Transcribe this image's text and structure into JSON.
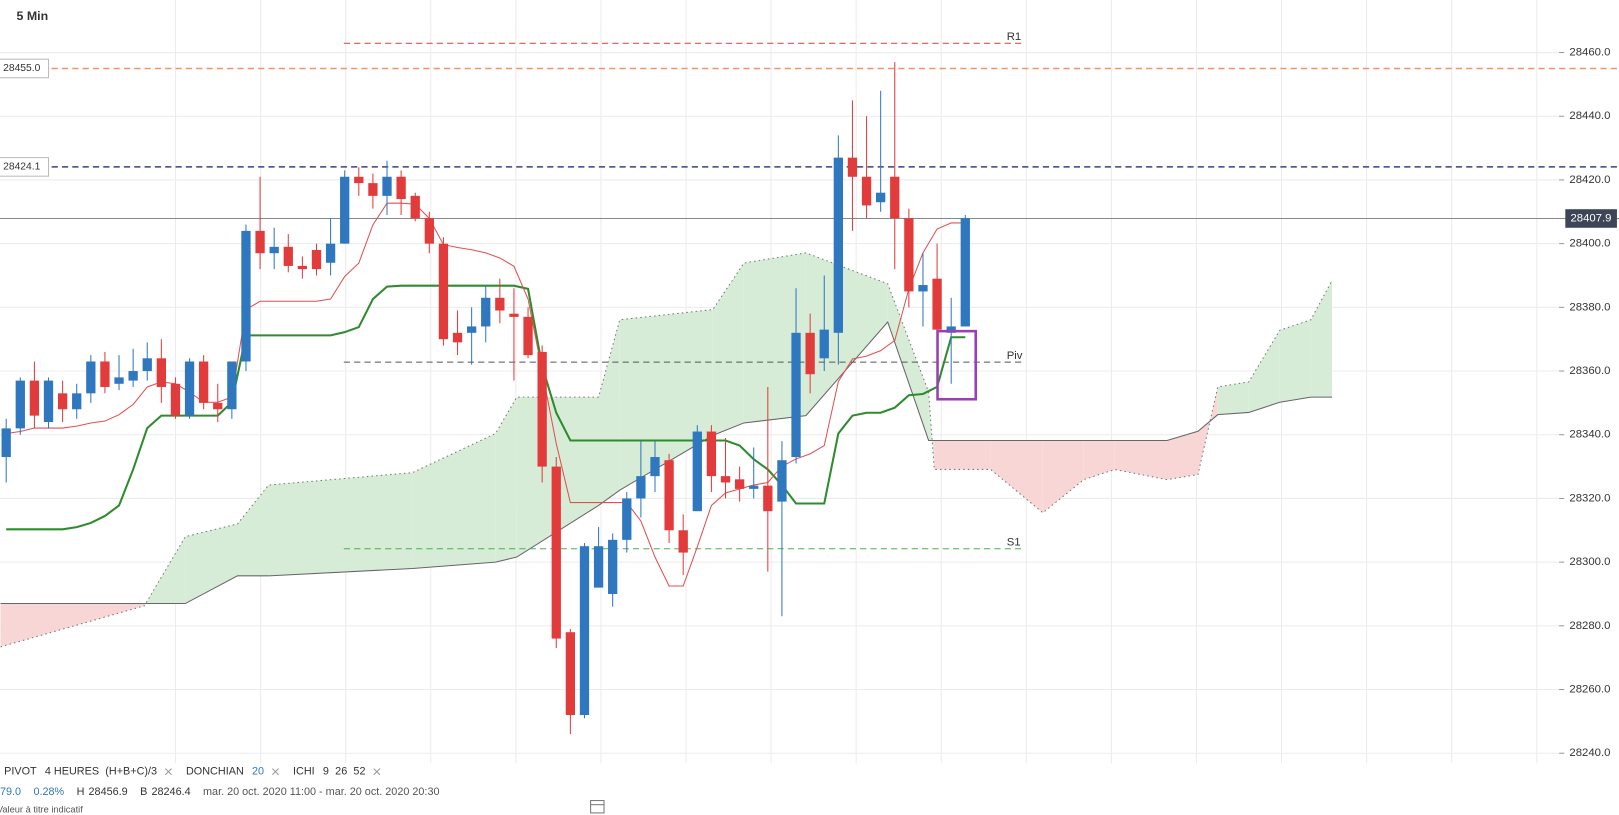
{
  "chart_data": {
    "type": "candlestick",
    "title": "5 Min",
    "ylim": [
      28236.8,
      28476.5
    ],
    "yticks": [
      {
        "value": 28240,
        "label": "28240.0"
      },
      {
        "value": 28260,
        "label": "28260.0"
      },
      {
        "value": 28280,
        "label": "28280.0"
      },
      {
        "value": 28300,
        "label": "28300.0"
      },
      {
        "value": 28320,
        "label": "28320.0"
      },
      {
        "value": 28340,
        "label": "28340.0"
      },
      {
        "value": 28360,
        "label": "28360.0"
      },
      {
        "value": 28380,
        "label": "28380.0"
      },
      {
        "value": 28400,
        "label": "28400.0"
      },
      {
        "value": 28420,
        "label": "28420.0"
      },
      {
        "value": 28440,
        "label": "28440.0"
      },
      {
        "value": 28460,
        "label": "28460.0"
      }
    ],
    "grid": true,
    "up_color": "#2f77bf",
    "down_color": "#e23b3b",
    "categories": [
      null,
      null,
      null,
      null,
      null,
      null,
      null,
      null,
      null,
      null,
      null,
      null,
      null,
      null,
      null,
      null,
      null,
      null,
      null,
      null,
      null,
      null,
      null,
      null,
      null,
      null,
      null,
      null,
      null,
      null,
      null,
      null,
      null,
      null,
      null,
      null,
      null,
      null,
      null,
      null,
      null,
      null,
      null,
      null,
      null,
      null,
      null,
      null,
      null,
      null,
      null,
      null,
      null,
      null,
      null,
      null,
      null,
      null,
      null,
      null,
      null,
      null,
      null,
      null,
      null,
      null,
      null,
      null,
      null
    ],
    "open": [
      28333,
      28342,
      28357,
      28344,
      28353,
      28348,
      28353,
      28363,
      28356,
      28357,
      28360,
      28364,
      28356,
      28346,
      28363,
      28350,
      28348,
      28363,
      28404,
      28397,
      28399,
      28393,
      28398,
      28394,
      28400,
      28421,
      28419,
      28415,
      28421,
      28415,
      28408,
      28400,
      28372,
      28372,
      28374,
      28383,
      28378,
      28377,
      28366,
      28330,
      28278,
      28252,
      28292,
      28290,
      28307,
      28320,
      28327,
      28332,
      28310,
      28316,
      28341,
      28327,
      28326,
      28323,
      28324,
      28319,
      28333,
      28372,
      28364,
      28372,
      28427,
      28421,
      28413,
      28421,
      28408,
      28385,
      28389,
      28372,
      28374
    ],
    "high": [
      28345,
      28358,
      28363,
      28358,
      28357,
      28356,
      28365,
      28366,
      28365,
      28367,
      28369,
      28370,
      28358,
      28364,
      28365,
      28356,
      28363,
      28406,
      28421,
      28405,
      28403,
      28396,
      28400,
      28408,
      28423,
      28424,
      28422,
      28426,
      28423,
      28416,
      28410,
      28402,
      28379,
      28380,
      28387,
      28389,
      28386,
      28380,
      28368,
      28333,
      28279,
      28306,
      28311,
      28309,
      28322,
      28338,
      28338,
      28334,
      28315,
      28343,
      28343,
      28339,
      28330,
      28336,
      28355,
      28338,
      28386,
      28378,
      28390,
      28434,
      28445,
      28440,
      28448,
      28457,
      28411,
      28397,
      28400,
      28383,
      28409
    ],
    "low": [
      28325,
      28340,
      28342,
      28342,
      28344,
      28345,
      28350,
      28353,
      28354,
      28355,
      28357,
      28350,
      28345,
      28345,
      28348,
      28344,
      28345,
      28360,
      28392,
      28392,
      28391,
      28389,
      28390,
      28390,
      28400,
      28415,
      28411,
      28409,
      28409,
      28407,
      28397,
      28368,
      28365,
      28362,
      28369,
      28375,
      28357,
      28364,
      28325,
      28273,
      28246,
      28251,
      28292,
      28286,
      28303,
      28314,
      28322,
      28306,
      28296,
      28316,
      28322,
      28320,
      28319,
      28320,
      28297,
      28283,
      28331,
      28353,
      28360,
      28362,
      28404,
      28408,
      28410,
      28392,
      28380,
      28374,
      28367,
      28356,
      28374
    ],
    "close": [
      28342,
      28357,
      28346,
      28357,
      28348,
      28353,
      28363,
      28355,
      28358,
      28360,
      28364,
      28355,
      28346,
      28363,
      28350,
      28348,
      28363,
      28404,
      28397,
      28399,
      28393,
      28392,
      28392,
      28400,
      28421,
      28419,
      28415,
      28421,
      28414,
      28408,
      28400,
      28370,
      28369,
      28374,
      28383,
      28379,
      28377,
      28365,
      28330,
      28276,
      28252,
      28305,
      28305,
      28307,
      28320,
      28327,
      28333,
      28310,
      28303,
      28341,
      28327,
      28325,
      28323,
      28324,
      28316,
      28332,
      28372,
      28359,
      28373,
      28427,
      28421,
      28412,
      28416,
      28408,
      28385,
      28387,
      28373,
      28374,
      28408
    ],
    "series": [
      {
        "color": "#2e8b2e",
        "values": [
          28310.3,
          28310.3,
          28310.3,
          28310.3,
          28310.3,
          28311,
          28312.3,
          28314.5,
          28317.8,
          28329.1,
          28342.1,
          28346,
          28346,
          28346,
          28346,
          28346,
          28350.2,
          28371.2,
          28371.2,
          28371.2,
          28371.2,
          28371.2,
          28371.2,
          28371.2,
          28372.2,
          28373.8,
          28382.6,
          28386.5,
          28386.8,
          28386.8,
          28386.8,
          28386.8,
          28386.8,
          28386.8,
          28386.8,
          28386.8,
          28386.8,
          28385.8,
          28361.5,
          28346.9,
          28338.2,
          28338.2,
          28338.2,
          28338.2,
          28338.2,
          28338.2,
          28338.2,
          28338.2,
          28338.2,
          28338.2,
          28338.2,
          28338.2,
          28336.6,
          28332.3,
          28329.1,
          28324.2,
          28318.4,
          28318.4,
          28318.4,
          28340.4,
          28346,
          28346.9,
          28346.9,
          28348.5,
          28352.4,
          28352.8,
          28355,
          28370.6,
          28370.6
        ]
      },
      {
        "color": "#e05050",
        "values": [
          28340.4,
          28341,
          28342.1,
          28342.1,
          28342.1,
          28342.7,
          28343.7,
          28344.3,
          28346.3,
          28349.5,
          28355,
          28356.6,
          28356,
          28353.4,
          28350.2,
          28350.2,
          28351.8,
          28379.3,
          28381.9,
          28381.9,
          28381.9,
          28381.9,
          28381.9,
          28382.6,
          28389.7,
          28393.9,
          28405.9,
          28412.7,
          28412.7,
          28412.4,
          28407.9,
          28399.7,
          28398.8,
          28398.1,
          28397.1,
          28395.5,
          28392.9,
          28382.6,
          28359.9,
          28337.2,
          28318.7,
          28318.7,
          28318.7,
          28318.7,
          28318.7,
          28312.9,
          28301.6,
          28292.5,
          28292.5,
          28304.8,
          28317.8,
          28321.7,
          28323,
          28324.2,
          28325,
          28330.1,
          28332.4,
          28334,
          28336.6,
          28356.7,
          28363.8,
          28364.7,
          28366.4,
          28369.6,
          28385.8,
          28397.1,
          28404.6,
          28406.5,
          28406.5
        ]
      }
    ],
    "cloud": {
      "up_color": "#d6ecd6",
      "down_color": "#f9d6d6",
      "x": [
        -0.4,
        9.8,
        12.7,
        16.4,
        18.6,
        28.8,
        34.7,
        36.2,
        42.0,
        43.5,
        50.1,
        52.3,
        56.7,
        62.5,
        65.4,
        65.8,
        69.8,
        73.5,
        76.4,
        78.6,
        82.3,
        84.5,
        85.9,
        88.1,
        90.3,
        92.5,
        94.0
      ],
      "span_a": [
        28273.4,
        28286.3,
        28308,
        28312,
        28324.2,
        28328.1,
        28340.4,
        28351.8,
        28351.8,
        28376.1,
        28379.3,
        28393.9,
        28397.1,
        28387.4,
        28353.4,
        28329.1,
        28329.1,
        28315.5,
        28325.9,
        28329.1,
        28325.9,
        28327.5,
        28355,
        28356.6,
        28372.8,
        28376.1,
        28388.4
      ],
      "span_b": [
        28287,
        28287,
        28287,
        28295.7,
        28295.7,
        28298,
        28300,
        28301.6,
        28317.8,
        28322.6,
        28339.8,
        28343.7,
        28346,
        28375.4,
        28338.2,
        28338.2,
        28338.2,
        28338.2,
        28338.2,
        28338.2,
        28338.2,
        28341.1,
        28346.3,
        28347,
        28350.2,
        28351.8,
        28351.8
      ]
    },
    "pivots": [
      {
        "name": "R1",
        "value": 28462.9,
        "color": "#e05555"
      },
      {
        "name": "Piv",
        "value": 28362.8,
        "color": "#555555"
      },
      {
        "name": "S1",
        "value": 28304.2,
        "color": "#4caf50"
      }
    ],
    "price_lines": [
      {
        "label": "28455.0",
        "value": 28455.0,
        "color": "#f0956a",
        "side": "left",
        "dashed": true
      },
      {
        "label": "28424.1",
        "value": 28424.1,
        "color": "#3b3f8f",
        "side": "left",
        "dashed": true
      },
      {
        "label": "28407.9",
        "value": 28407.9,
        "color": "#888888",
        "side": "right",
        "dashed": false
      }
    ],
    "indicators": [
      {
        "name": "PIVOT",
        "params": [
          "4 HEURES",
          "(H+B+C)/3"
        ]
      },
      {
        "name": "DONCHIAN",
        "params": [
          "20"
        ]
      },
      {
        "name": "ICHI",
        "params": [
          "9",
          "26",
          "52"
        ]
      }
    ],
    "info": {
      "change": "79.0",
      "change_pct": "0.28%",
      "high_label": "H",
      "high": "28456.9",
      "low_label": "B",
      "low": "28246.4",
      "range": "mar. 20 oct. 2020 11:00 - mar. 20 oct. 2020 20:30",
      "note": "Valeur à titre indicatif"
    }
  }
}
